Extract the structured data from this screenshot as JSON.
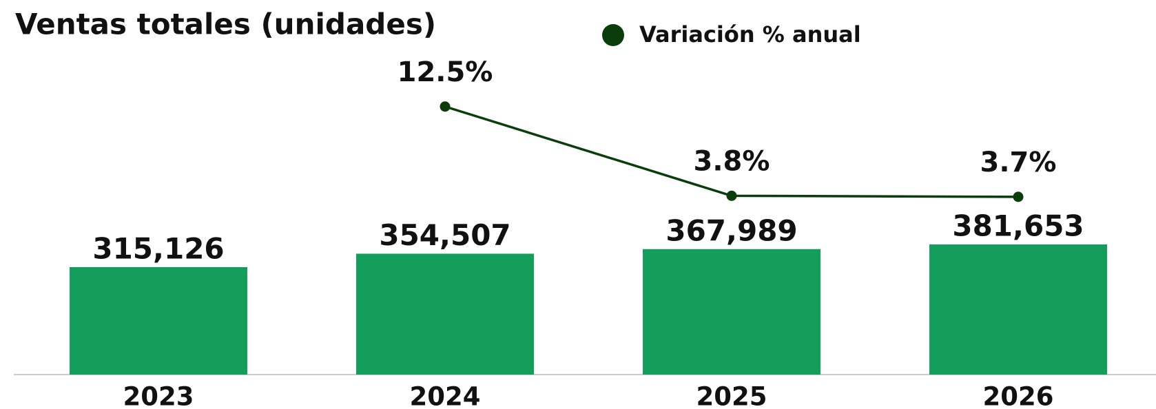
{
  "chart_data": {
    "type": "bar",
    "title": "Ventas totales (unidades)",
    "categories": [
      "2023",
      "2024",
      "2025",
      "2026"
    ],
    "series": [
      {
        "type": "bar",
        "color": "#139e5c",
        "values": [
          315126,
          354507,
          367989,
          381653
        ],
        "value_labels": [
          "315,126",
          "354,507",
          "367,989",
          "381,653"
        ]
      },
      {
        "type": "line",
        "name": "Variación % anual",
        "color": "#0b3d0b",
        "values": [
          null,
          12.5,
          3.8,
          3.7
        ],
        "value_labels": [
          null,
          "12.5%",
          "3.8%",
          "3.7%"
        ]
      }
    ],
    "legend": "top"
  }
}
